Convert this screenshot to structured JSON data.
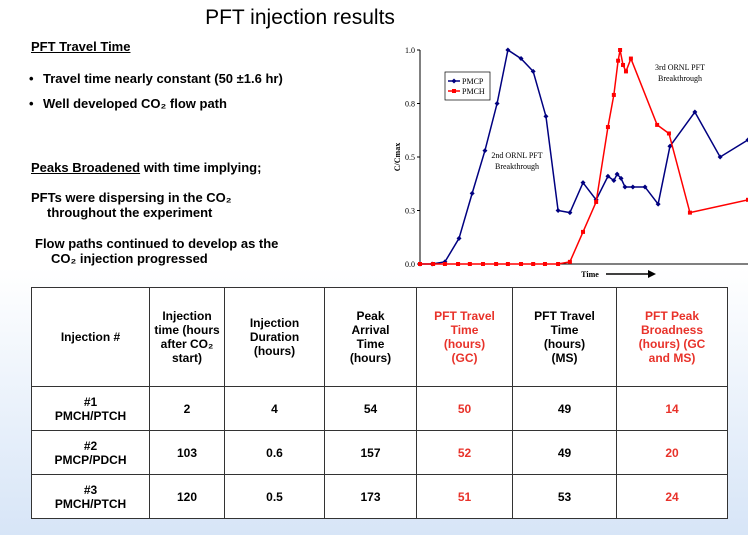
{
  "title": "PFT injection results",
  "left_text": {
    "heading": "PFT Travel Time",
    "bullets": [
      "Travel time nearly constant (50 ±1.6 hr)",
      "Well developed CO₂ flow path"
    ],
    "peaks_underlined": "Peaks Broadened",
    "peaks_rest": " with time implying;",
    "points": [
      "PFTs were dispersing in the CO₂\nthroughout the experiment",
      "Flow paths continued to develop as the\nCO₂ injection progressed"
    ]
  },
  "chart_data": {
    "type": "line",
    "ylabel": "C/Cmax",
    "xlabel": "Time",
    "xlim": [
      0,
      100
    ],
    "ylim": [
      0,
      1
    ],
    "yticks": [
      {
        "value": 0,
        "label": "0.0"
      },
      {
        "value": 0.25,
        "label": "0.3"
      },
      {
        "value": 0.5,
        "label": "0.5"
      },
      {
        "value": 0.75,
        "label": "0.8"
      },
      {
        "value": 1,
        "label": "1.0"
      }
    ],
    "annotations": [
      [
        "2nd ORNL PFT",
        "Breakthrough"
      ],
      [
        "3rd ORNL PFT",
        "Breakthrough"
      ]
    ],
    "series": [
      {
        "name": "PMCP",
        "color": "#000080",
        "marker": "diamond",
        "x": [
          0,
          3.7,
          7.6,
          11.9,
          15.9,
          19.8,
          23.5,
          26.8,
          30.8,
          34.5,
          38.4,
          42.1,
          45.7,
          49.7,
          53.7,
          57.3,
          59.1,
          60.1,
          61.3,
          62.5,
          64.9,
          68.6,
          72.6,
          76.2,
          83.8,
          91.5,
          100
        ],
        "values": [
          0,
          0,
          0.01,
          0.12,
          0.33,
          0.53,
          0.75,
          1.0,
          0.96,
          0.9,
          0.69,
          0.25,
          0.24,
          0.38,
          0.3,
          0.41,
          0.39,
          0.42,
          0.4,
          0.36,
          0.36,
          0.36,
          0.28,
          0.55,
          0.71,
          0.5,
          0.58
        ]
      },
      {
        "name": "PMCH",
        "color": "#ff0000",
        "marker": "square",
        "x": [
          0,
          4,
          7.6,
          11.6,
          15.2,
          19.2,
          23.2,
          26.8,
          30.8,
          34.5,
          38.1,
          42.1,
          45.7,
          49.7,
          53.7,
          57.3,
          59.1,
          60.4,
          61,
          61.9,
          62.8,
          64.3,
          72.3,
          75.9,
          82.3,
          100
        ],
        "values": [
          0,
          0,
          0,
          0,
          0,
          0,
          0,
          0,
          0,
          0,
          0,
          0,
          0.01,
          0.15,
          0.29,
          0.64,
          0.79,
          0.95,
          1.0,
          0.93,
          0.9,
          0.96,
          0.65,
          0.61,
          0.24,
          0.3
        ]
      }
    ]
  },
  "table": {
    "highlight_color": "#e8322a",
    "highlight_columns": [
      4,
      6
    ],
    "header": [
      "Injection #",
      "Injection\ntime (hours\nafter CO₂\nstart)",
      "Injection\nDuration\n(hours)",
      "Peak\nArrival\nTime\n(hours)",
      "PFT Travel\nTime\n(hours)\n(GC)",
      "PFT Travel\nTime\n(hours)\n(MS)",
      "PFT Peak\nBroadness\n(hours) (GC\nand MS)"
    ],
    "rows": [
      [
        "#1\nPMCH/PTCH",
        "2",
        "4",
        "54",
        "50",
        "49",
        "14"
      ],
      [
        "#2\nPMCP/PDCH",
        "103",
        "0.6",
        "157",
        "52",
        "49",
        "20"
      ],
      [
        "#3\nPMCH/PTCH",
        "120",
        "0.5",
        "173",
        "51",
        "53",
        "24"
      ]
    ]
  }
}
